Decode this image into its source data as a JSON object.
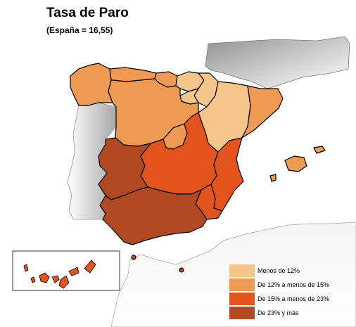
{
  "title": "Tasa de Paro",
  "subtitle": "(España = 16,55)",
  "colors": {
    "band1": "#f5c68a",
    "band2": "#ee9a52",
    "band3": "#e2541c",
    "band4": "#b14a22",
    "neighbor_light": "#f2f2f2",
    "neighbor_dark": "#9a9a9a"
  },
  "legend": {
    "items": [
      {
        "label": "Menos de 12%",
        "color": "#f5c68a"
      },
      {
        "label": "De 12% a menos de 15%",
        "color": "#ee9a52"
      },
      {
        "label": "De 15% a menos de 23%",
        "color": "#e2541c"
      },
      {
        "label": "De 23% y más",
        "color": "#b14a22"
      }
    ]
  },
  "regions": [
    {
      "name": "Galicia",
      "band": 2
    },
    {
      "name": "Asturias",
      "band": 2
    },
    {
      "name": "Cantabria",
      "band": 2
    },
    {
      "name": "País Vasco",
      "band": 1
    },
    {
      "name": "Navarra",
      "band": 1
    },
    {
      "name": "La Rioja",
      "band": 1
    },
    {
      "name": "Aragón",
      "band": 1
    },
    {
      "name": "Cataluña",
      "band": 2
    },
    {
      "name": "Castilla y León",
      "band": 2
    },
    {
      "name": "Madrid",
      "band": 2
    },
    {
      "name": "Castilla-La Mancha",
      "band": 3
    },
    {
      "name": "Comunidad Valenciana",
      "band": 3
    },
    {
      "name": "Murcia",
      "band": 3
    },
    {
      "name": "Extremadura",
      "band": 4
    },
    {
      "name": "Andalucía",
      "band": 4
    },
    {
      "name": "Illes Balears",
      "band": 2
    },
    {
      "name": "Canarias",
      "band": 4
    },
    {
      "name": "Ceuta",
      "band": 4
    },
    {
      "name": "Melilla",
      "band": 4
    }
  ]
}
